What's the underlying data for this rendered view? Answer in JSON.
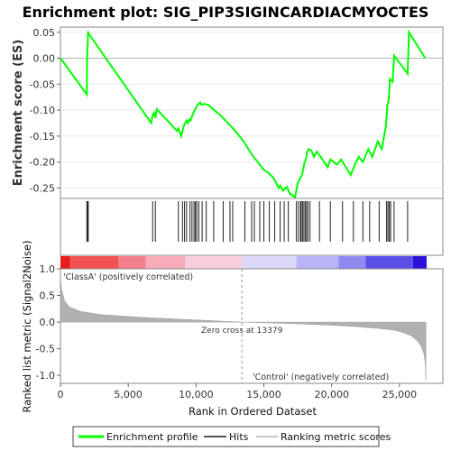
{
  "chart_data": {
    "type": "line",
    "title": "Enrichment plot: SIG_PIP3SIGINCARDIACMYOCTES",
    "es_panel": {
      "ylabel": "Enrichment score (ES)",
      "ylim": [
        -0.27,
        0.06
      ],
      "yticks": [
        "0.05",
        "0.00",
        "-0.05",
        "-0.10",
        "-0.15",
        "-0.20",
        "-0.25"
      ],
      "ytick_values": [
        0.05,
        0.0,
        -0.05,
        -0.1,
        -0.15,
        -0.2,
        -0.25
      ],
      "series": [
        {
          "name": "Enrichment profile",
          "color": "#00ff00",
          "x": [
            0,
            1950,
            1960,
            2040,
            2060,
            6700,
            6800,
            6900,
            7000,
            7100,
            8600,
            8700,
            8900,
            9000,
            9100,
            9300,
            9400,
            9500,
            9600,
            9800,
            9900,
            10000,
            10100,
            10300,
            10400,
            10600,
            10900,
            11800,
            12900,
            13500,
            14100,
            14700,
            15000,
            15300,
            15700,
            16100,
            16200,
            16400,
            16600,
            16700,
            16900,
            17300,
            17500,
            17600,
            17700,
            17800,
            17900,
            18000,
            18100,
            18200,
            18300,
            18500,
            18700,
            18900,
            19200,
            19700,
            19900,
            20400,
            20700,
            21400,
            21700,
            22000,
            22300,
            22700,
            23000,
            23400,
            23700,
            24000,
            24100,
            24150,
            24200,
            24300,
            24500,
            24600,
            25600,
            25700,
            26900
          ],
          "y": [
            0.0,
            -0.07,
            -0.005,
            0.052,
            0.048,
            -0.125,
            -0.11,
            -0.105,
            -0.115,
            -0.098,
            -0.14,
            -0.135,
            -0.15,
            -0.14,
            -0.13,
            -0.12,
            -0.125,
            -0.118,
            -0.12,
            -0.105,
            -0.1,
            -0.095,
            -0.09,
            -0.085,
            -0.09,
            -0.088,
            -0.09,
            -0.11,
            -0.14,
            -0.16,
            -0.185,
            -0.205,
            -0.215,
            -0.22,
            -0.23,
            -0.25,
            -0.245,
            -0.255,
            -0.25,
            -0.248,
            -0.26,
            -0.268,
            -0.24,
            -0.235,
            -0.23,
            -0.225,
            -0.215,
            -0.2,
            -0.195,
            -0.18,
            -0.175,
            -0.178,
            -0.19,
            -0.18,
            -0.19,
            -0.21,
            -0.195,
            -0.205,
            -0.195,
            -0.225,
            -0.205,
            -0.19,
            -0.2,
            -0.175,
            -0.19,
            -0.16,
            -0.175,
            -0.13,
            -0.09,
            -0.088,
            -0.08,
            -0.04,
            -0.045,
            0.005,
            -0.03,
            0.05,
            0.0
          ]
        }
      ]
    },
    "hits": [
      1950,
      2000,
      2050,
      6800,
      7000,
      8700,
      9000,
      9150,
      9300,
      9550,
      9700,
      9850,
      9950,
      10050,
      10200,
      10450,
      10750,
      11300,
      12000,
      12500,
      12700,
      13600,
      14100,
      14300,
      14700,
      15000,
      15400,
      15800,
      16200,
      16500,
      16800,
      17400,
      17550,
      17700,
      17750,
      17850,
      17950,
      18050,
      18150,
      18250,
      18400,
      19100,
      19900,
      20800,
      21600,
      22300,
      22800,
      23500,
      24050,
      24150,
      24250,
      24350,
      24600,
      25600
    ],
    "metric_panel": {
      "ylabel": "Ranked list metric (Signal2Noise)",
      "ylim": [
        -1.15,
        1.0
      ],
      "yticks": [
        "1.0",
        "0.5",
        "0.0",
        "-0.5",
        "-1.0"
      ],
      "ytick_values": [
        1.0,
        0.5,
        0.0,
        -0.5,
        -1.0
      ],
      "profile_x": [
        0,
        100,
        300,
        700,
        1500,
        3000,
        6000,
        10000,
        13379,
        17000,
        20000,
        22000,
        23500,
        24500,
        25200,
        25800,
        26300,
        26600,
        26800,
        26900,
        26950
      ],
      "profile_y": [
        0.85,
        0.6,
        0.4,
        0.28,
        0.2,
        0.14,
        0.09,
        0.04,
        0.0,
        -0.03,
        -0.06,
        -0.09,
        -0.12,
        -0.15,
        -0.19,
        -0.25,
        -0.35,
        -0.45,
        -0.6,
        -0.8,
        -1.1
      ],
      "fill_color": "#b0b0b0",
      "zero_cross_label": "Zero cross at 13379",
      "zero_cross_x": 13379,
      "pos_label": "'ClassA' (positively correlated)",
      "neg_label": "'Control' (negatively correlated)",
      "pos_color": "#ff0000",
      "neg_color": "#0000ff"
    },
    "x_axis": {
      "xlabel": "Rank in Ordered Dataset",
      "xlim": [
        0,
        28200
      ],
      "xticks": [
        "0",
        "5,000",
        "10,000",
        "15,000",
        "20,000",
        "25,000"
      ],
      "xtick_values": [
        0,
        5000,
        10000,
        15000,
        20000,
        25000
      ]
    },
    "colorbar": {
      "end_x": 27000,
      "segments": [
        {
          "x0": 0,
          "x1": 700,
          "color": "#e81c1c"
        },
        {
          "x0": 700,
          "x1": 4300,
          "color": "#f25252"
        },
        {
          "x0": 4300,
          "x1": 6300,
          "color": "#f4808c"
        },
        {
          "x0": 6300,
          "x1": 9200,
          "color": "#f7aab8"
        },
        {
          "x0": 9200,
          "x1": 13400,
          "color": "#f9cfe0"
        },
        {
          "x0": 13400,
          "x1": 17400,
          "color": "#dcd9fb"
        },
        {
          "x0": 17400,
          "x1": 20500,
          "color": "#b8b4f7"
        },
        {
          "x0": 20500,
          "x1": 22500,
          "color": "#8f89f0"
        },
        {
          "x0": 22500,
          "x1": 26000,
          "color": "#5a50e8"
        },
        {
          "x0": 26000,
          "x1": 27000,
          "color": "#2a10d8"
        }
      ]
    },
    "legend": [
      {
        "label": "Enrichment profile",
        "color": "#00ff00"
      },
      {
        "label": "Hits",
        "color": "#555555"
      },
      {
        "label": "Ranking metric scores",
        "color": "#c8c8c8"
      }
    ]
  }
}
